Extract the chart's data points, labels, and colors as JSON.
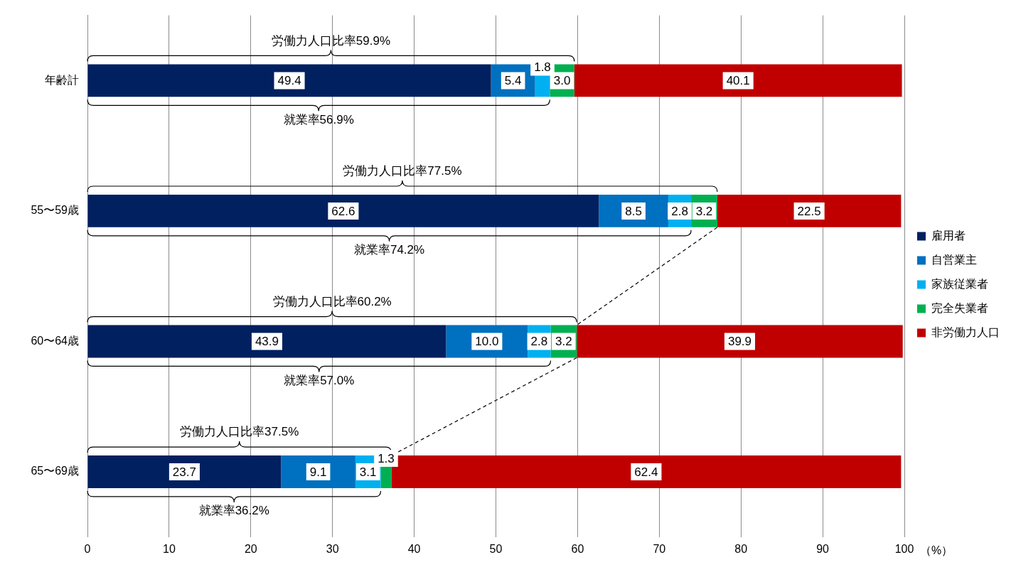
{
  "chart_data": {
    "type": "bar",
    "orientation": "horizontal",
    "stacked": true,
    "categories": [
      "年齢計",
      "55〜59歳",
      "60〜64歳",
      "65〜69歳"
    ],
    "series": [
      {
        "name": "雇用者",
        "color": "#002060",
        "values": [
          49.4,
          62.6,
          43.9,
          23.7
        ],
        "value_labels": [
          "49.4",
          "62.6",
          "43.9",
          "23.7"
        ]
      },
      {
        "name": "自営業主",
        "color": "#0070c0",
        "values": [
          5.4,
          8.5,
          10.0,
          9.1
        ],
        "value_labels": [
          "5.4",
          "8.5",
          "10.0",
          "9.1"
        ]
      },
      {
        "name": "家族従業者",
        "color": "#00b0f0",
        "values": [
          1.8,
          2.8,
          2.8,
          3.1
        ],
        "value_labels": [
          "1.8",
          "2.8",
          "2.8",
          "3.1"
        ]
      },
      {
        "name": "完全失業者",
        "color": "#00b050",
        "values": [
          3.0,
          3.2,
          3.2,
          1.3
        ],
        "value_labels": [
          "3.0",
          "3.2",
          "3.2",
          "1.3"
        ]
      },
      {
        "name": "非労働力人口",
        "color": "#c00000",
        "values": [
          40.1,
          22.5,
          39.9,
          62.4
        ],
        "value_labels": [
          "40.1",
          "22.5",
          "39.9",
          "62.4"
        ]
      }
    ],
    "xlim": [
      0,
      100
    ],
    "xticks": [
      0,
      10,
      20,
      30,
      40,
      50,
      60,
      70,
      80,
      90,
      100
    ],
    "xlabel": "（%）",
    "grid": "x",
    "legend": "right",
    "annotations": [
      "労働力人口比率59.9%",
      "就業率56.9%",
      "労働力人口比率77.5%",
      "就業率74.2%",
      "労働力人口比率60.2%",
      "就業率57.0%",
      "労働力人口比率37.5%",
      "就業率36.2%"
    ]
  }
}
